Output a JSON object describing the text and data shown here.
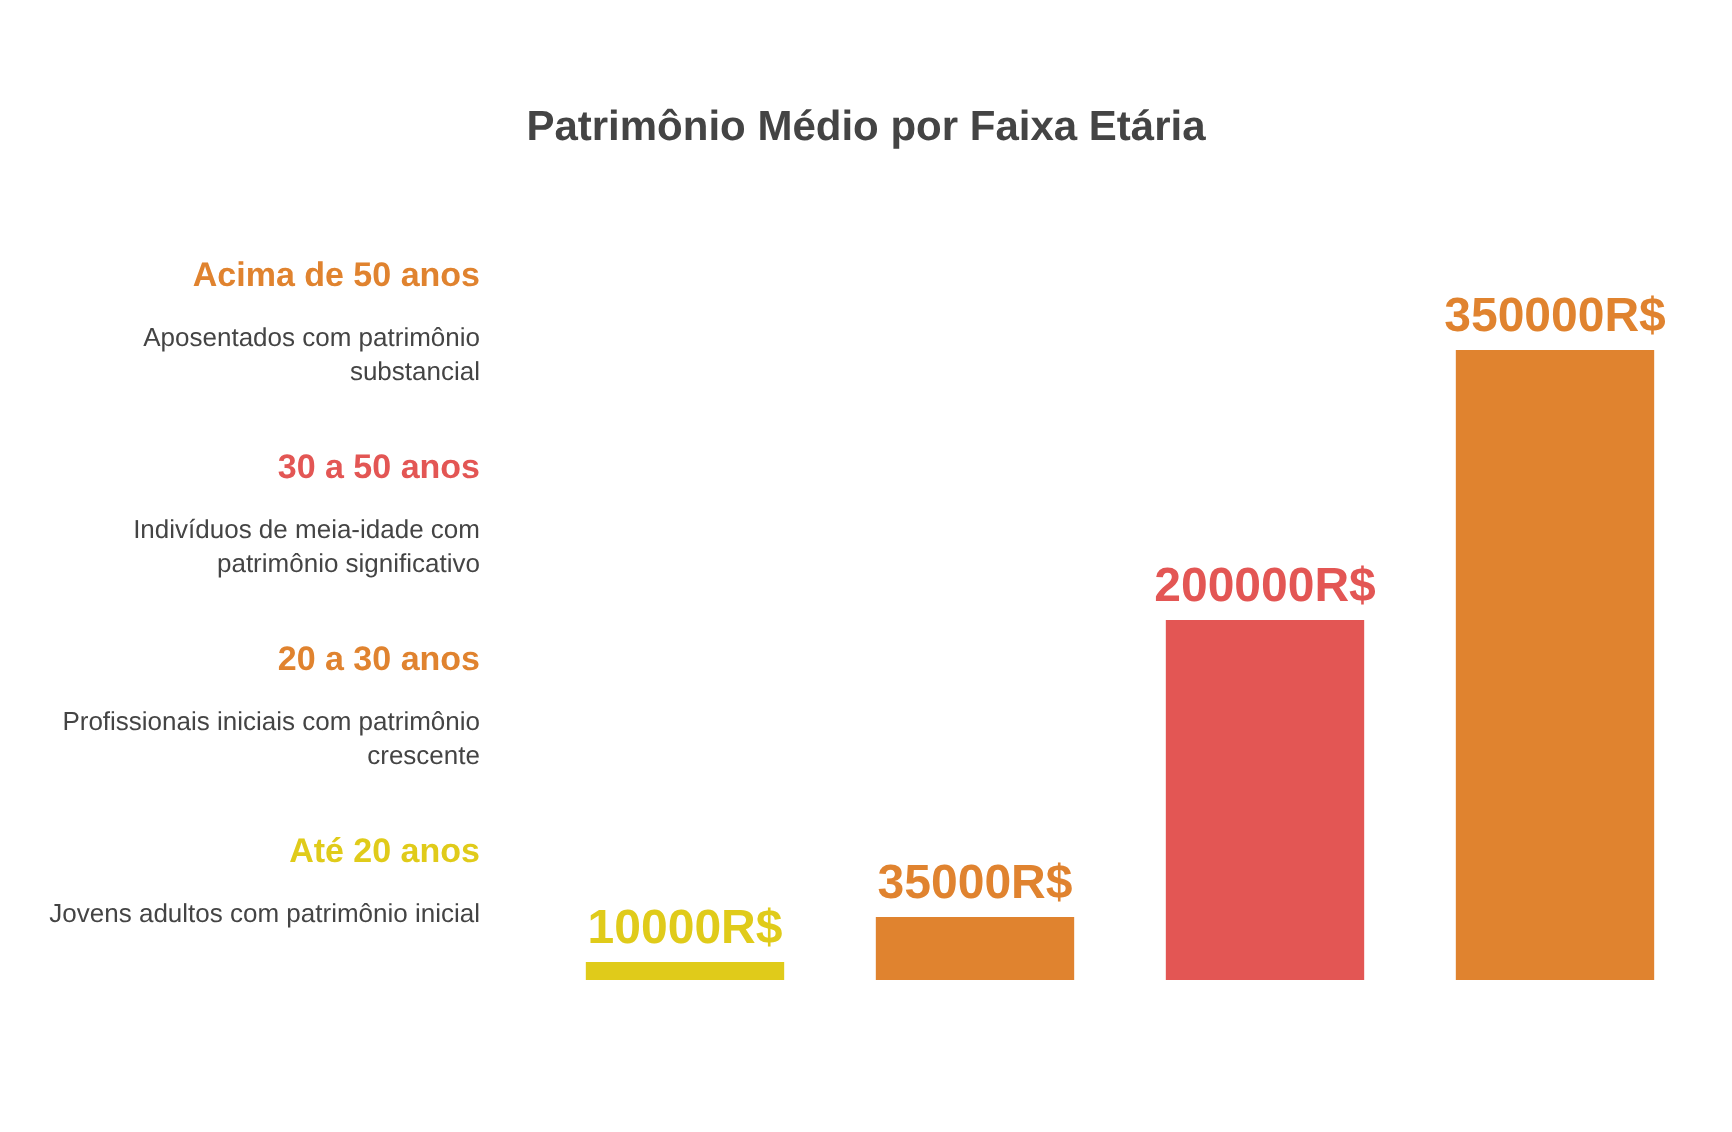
{
  "chart_data": {
    "type": "bar",
    "title": "Patrimônio Médio por Faixa Etária",
    "categories": [
      null,
      null,
      null,
      null
    ],
    "values": [
      10000,
      35000,
      200000,
      350000
    ],
    "colors": [
      "#e0cb1a",
      "#e0832f",
      "#e35654",
      "#e0832f"
    ],
    "value_labels": [
      "10000R$",
      "35000R$",
      "200000R$",
      "350000R$"
    ],
    "annotations": [
      "Acima de 50 anos",
      "Aposentados com patrimônio substancial",
      "30 a 50 anos",
      "Indivíduos de meia-idade com patrimônio significativo",
      "20 a 30 anos",
      "Profissionais iniciais com patrimônio crescente",
      "Até 20 anos",
      "Jovens adultos com patrimônio inicial"
    ]
  }
}
